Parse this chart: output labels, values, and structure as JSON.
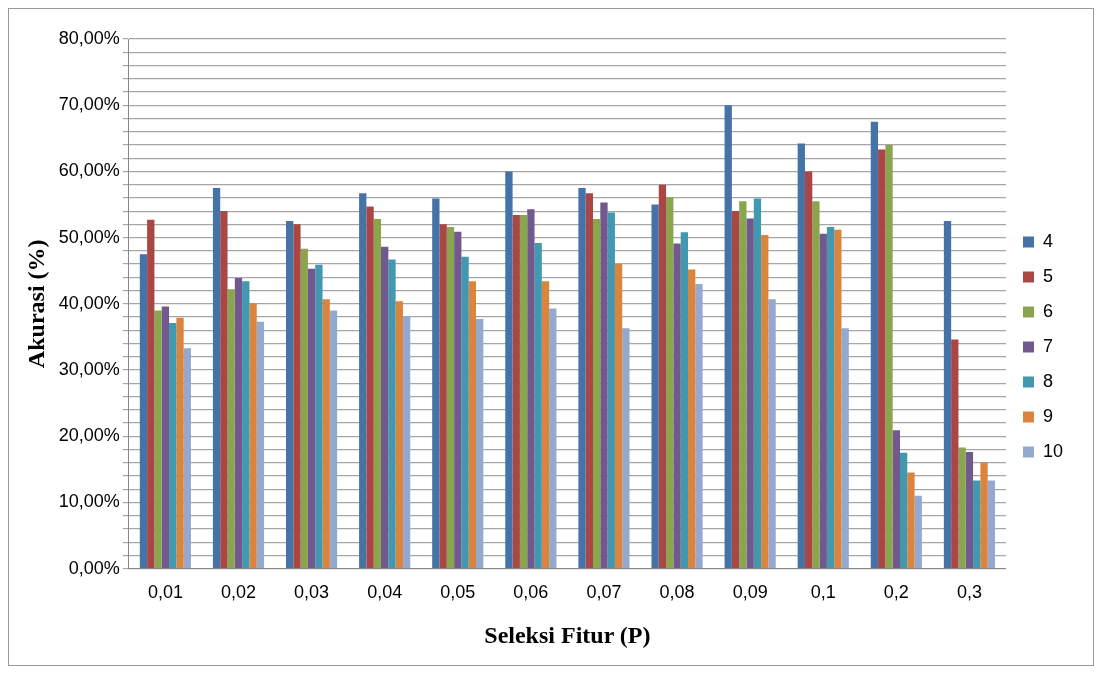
{
  "chart_data": {
    "type": "bar",
    "xlabel": "Seleksi Fitur (P)",
    "ylabel": "Akurasi (%)",
    "categories": [
      "0,01",
      "0,02",
      "0,03",
      "0,04",
      "0,05",
      "0,06",
      "0,07",
      "0,08",
      "0,09",
      "0,1",
      "0,2",
      "0,3"
    ],
    "series": [
      {
        "name": "4",
        "color": "#4572a7",
        "values": [
          47.5,
          57.5,
          52.5,
          56.7,
          55.9,
          60,
          57.5,
          55,
          70,
          64.2,
          67.5,
          52.5
        ]
      },
      {
        "name": "5",
        "color": "#aa4643",
        "values": [
          52.7,
          54,
          52,
          54.7,
          52,
          53.4,
          56.7,
          58,
          54,
          60,
          63.3,
          34.6
        ]
      },
      {
        "name": "6",
        "color": "#89a54e",
        "values": [
          39,
          42.2,
          48.3,
          52.8,
          51.6,
          53.4,
          52.8,
          56.1,
          55.5,
          55.5,
          64,
          18.3
        ]
      },
      {
        "name": "7",
        "color": "#71588f",
        "values": [
          39.6,
          43.9,
          45.3,
          48.6,
          50.9,
          54.3,
          55.3,
          49.1,
          52.9,
          50.6,
          20.9,
          17.6
        ]
      },
      {
        "name": "8",
        "color": "#4198af",
        "values": [
          37.1,
          43.4,
          45.9,
          46.7,
          47.1,
          49.2,
          53.8,
          50.8,
          55.9,
          51.6,
          17.5,
          13.3
        ]
      },
      {
        "name": "9",
        "color": "#db843d",
        "values": [
          37.9,
          40.1,
          40.7,
          40.4,
          43.4,
          43.4,
          46,
          45.2,
          50.4,
          51.2,
          14.5,
          16
        ]
      },
      {
        "name": "10",
        "color": "#93a9cf",
        "values": [
          33.3,
          37.3,
          39,
          38.1,
          37.7,
          39.3,
          36.3,
          43,
          40.7,
          36.3,
          11,
          13.3
        ]
      }
    ],
    "ylim": [
      0,
      80
    ],
    "yticks": [
      {
        "value": 0,
        "label": "0,00%"
      },
      {
        "value": 2,
        "label": null
      },
      {
        "value": 4,
        "label": null
      },
      {
        "value": 6,
        "label": null
      },
      {
        "value": 8,
        "label": null
      },
      {
        "value": 10,
        "label": "10,00%"
      },
      {
        "value": 12,
        "label": null
      },
      {
        "value": 14,
        "label": null
      },
      {
        "value": 16,
        "label": null
      },
      {
        "value": 18,
        "label": null
      },
      {
        "value": 20,
        "label": "20,00%"
      },
      {
        "value": 22,
        "label": null
      },
      {
        "value": 24,
        "label": null
      },
      {
        "value": 26,
        "label": null
      },
      {
        "value": 28,
        "label": null
      },
      {
        "value": 30,
        "label": "30,00%"
      },
      {
        "value": 32,
        "label": null
      },
      {
        "value": 34,
        "label": null
      },
      {
        "value": 36,
        "label": null
      },
      {
        "value": 38,
        "label": null
      },
      {
        "value": 40,
        "label": "40,00%"
      },
      {
        "value": 42,
        "label": null
      },
      {
        "value": 44,
        "label": null
      },
      {
        "value": 46,
        "label": null
      },
      {
        "value": 48,
        "label": null
      },
      {
        "value": 50,
        "label": "50,00%"
      },
      {
        "value": 52,
        "label": null
      },
      {
        "value": 54,
        "label": null
      },
      {
        "value": 56,
        "label": null
      },
      {
        "value": 58,
        "label": null
      },
      {
        "value": 60,
        "label": "60,00%"
      },
      {
        "value": 62,
        "label": null
      },
      {
        "value": 64,
        "label": null
      },
      {
        "value": 66,
        "label": null
      },
      {
        "value": 68,
        "label": null
      },
      {
        "value": 70,
        "label": "70,00%"
      },
      {
        "value": 72,
        "label": null
      },
      {
        "value": 74,
        "label": null
      },
      {
        "value": 76,
        "label": null
      },
      {
        "value": 78,
        "label": null
      },
      {
        "value": 80,
        "label": "80,00%"
      }
    ],
    "grid": "y",
    "legend": "right"
  }
}
